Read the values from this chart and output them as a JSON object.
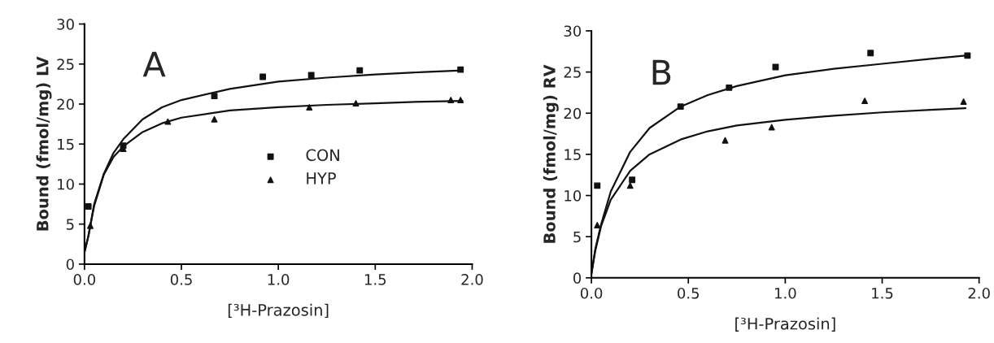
{
  "chart_data": [
    {
      "type": "scatter",
      "annotations": [
        "A"
      ],
      "xlabel": "[³H-Prazosin]",
      "ylabel": "Bound (fmol/mg) LV",
      "xlim": [
        0,
        2
      ],
      "ylim": [
        0,
        30
      ],
      "xticks": [
        {
          "value": 0,
          "label": "0.0"
        },
        {
          "value": 0.5,
          "label": "0.5"
        },
        {
          "value": 1,
          "label": "1.0"
        },
        {
          "value": 1.5,
          "label": "1.5"
        },
        {
          "value": 2,
          "label": "2.0"
        }
      ],
      "yticks": [
        0,
        5,
        10,
        15,
        20,
        25,
        30
      ],
      "grid": false,
      "legend": "center",
      "series": [
        {
          "name": "CON",
          "color": "#111111",
          "marker": "square",
          "x": [
            0.02,
            0.2,
            0.67,
            0.92,
            1.17,
            1.42,
            1.94
          ],
          "values": [
            7.2,
            14.8,
            21,
            23.4,
            23.6,
            24.2,
            24.3
          ]
        },
        {
          "name": "HYP",
          "color": "#111111",
          "marker": "triangle",
          "x": [
            0.03,
            0.2,
            0.43,
            0.67,
            1.16,
            1.4,
            1.89,
            1.94
          ],
          "values": [
            4.8,
            14.4,
            17.8,
            18.1,
            19.6,
            20.1,
            20.5,
            20.5
          ]
        },
        {
          "type": "line",
          "color": "#111111",
          "marker": "none",
          "line_style": "solid",
          "x": [
            0,
            0.02,
            0.05,
            0.1,
            0.15,
            0.2,
            0.3,
            0.4,
            0.5,
            0.75,
            1.0,
            1.25,
            1.5,
            1.75,
            1.95
          ],
          "values": [
            1.5,
            3.5,
            7.5,
            11.3,
            13.9,
            15.6,
            18.1,
            19.6,
            20.5,
            21.9,
            22.8,
            23.3,
            23.7,
            24.0,
            24.2
          ]
        },
        {
          "type": "line",
          "color": "#111111",
          "marker": "none",
          "line_style": "solid",
          "x": [
            0,
            0.02,
            0.05,
            0.1,
            0.15,
            0.2,
            0.3,
            0.4,
            0.5,
            0.75,
            1.0,
            1.25,
            1.5,
            1.75,
            1.95
          ],
          "values": [
            1.5,
            3.5,
            7.3,
            11.2,
            13.4,
            14.7,
            16.5,
            17.6,
            18.3,
            19.2,
            19.6,
            19.9,
            20.1,
            20.3,
            20.4
          ]
        }
      ]
    },
    {
      "type": "scatter",
      "annotations": [
        "B"
      ],
      "xlabel": "[³H-Prazosin]",
      "ylabel": "Bound (fmol/mg) RV",
      "xlim": [
        0,
        2
      ],
      "ylim": [
        0,
        30
      ],
      "xticks": [
        {
          "value": 0,
          "label": "0.0"
        },
        {
          "value": 0.5,
          "label": "0.5"
        },
        {
          "value": 1,
          "label": "1.0"
        },
        {
          "value": 1.5,
          "label": "1.5"
        },
        {
          "value": 2,
          "label": "2.0"
        }
      ],
      "yticks": [
        0,
        5,
        10,
        15,
        20,
        25,
        30
      ],
      "grid": false,
      "legend": false,
      "series": [
        {
          "color": "#111111",
          "marker": "square",
          "x": [
            0.03,
            0.21,
            0.46,
            0.71,
            0.95,
            1.44,
            1.94
          ],
          "values": [
            11.2,
            11.9,
            20.8,
            23.1,
            25.6,
            27.3,
            27.0
          ]
        },
        {
          "color": "#111111",
          "marker": "triangle",
          "x": [
            0.03,
            0.2,
            0.69,
            0.93,
            1.41,
            1.92
          ],
          "values": [
            6.4,
            11.2,
            16.7,
            18.3,
            21.5,
            21.4
          ]
        },
        {
          "type": "line",
          "color": "#111111",
          "marker": "none",
          "line_style": "solid",
          "x": [
            0,
            0.02,
            0.05,
            0.1,
            0.2,
            0.3,
            0.46,
            0.6,
            0.75,
            1.0,
            1.25,
            1.5,
            1.75,
            1.93
          ],
          "values": [
            0.5,
            3.5,
            6.5,
            10.5,
            15.3,
            18.2,
            20.8,
            22.2,
            23.3,
            24.6,
            25.4,
            26.0,
            26.6,
            27.0
          ]
        },
        {
          "type": "line",
          "color": "#111111",
          "marker": "none",
          "line_style": "solid",
          "x": [
            0,
            0.02,
            0.05,
            0.1,
            0.2,
            0.3,
            0.46,
            0.6,
            0.75,
            1.0,
            1.25,
            1.5,
            1.75,
            1.93
          ],
          "values": [
            0.5,
            3.3,
            6.3,
            9.5,
            13.0,
            15.0,
            16.8,
            17.8,
            18.5,
            19.2,
            19.7,
            20.1,
            20.4,
            20.6
          ]
        }
      ]
    }
  ]
}
